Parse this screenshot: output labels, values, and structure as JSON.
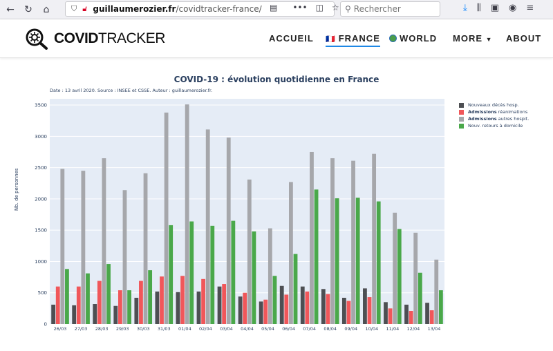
{
  "browser": {
    "url_domain": "guillaumerozier.fr",
    "url_path": "/covidtracker-france/",
    "search_placeholder": "Rechercher",
    "nav_icons": [
      "back-icon",
      "reload-icon",
      "home-icon"
    ],
    "url_icons": [
      "shield-icon",
      "lock-icon"
    ],
    "tool_icons": [
      "reader-icon",
      "more-icon",
      "pocket-icon",
      "star-icon"
    ],
    "right_icons": [
      "download-icon",
      "library-icon",
      "sidebar-icon",
      "account-icon",
      "menu-icon"
    ]
  },
  "site": {
    "logo_bold": "COVID",
    "logo_light": "TRACKER",
    "nav": [
      {
        "label": "ACCUEIL"
      },
      {
        "label": "FRANCE",
        "flag": "🇫🇷",
        "active": true
      },
      {
        "label": "WORLD",
        "icon": "globe-icon"
      },
      {
        "label": "MORE",
        "icon": "chevron-down-icon"
      },
      {
        "label": "ABOUT"
      }
    ]
  },
  "chart_data": {
    "type": "bar",
    "title": "COVID-19 : évolution quotidienne en France",
    "subtitle": "Date : 13 avril 2020. Source : INSEE et CSSE. Auteur : guillaumerozier.fr.",
    "ylabel": "Nb. de personnes",
    "xlabel": "",
    "ylim": [
      0,
      3600
    ],
    "yticks": [
      0,
      500,
      1000,
      1500,
      2000,
      2500,
      3000,
      3500
    ],
    "grid": true,
    "legend_position": "right",
    "categories": [
      "26/03",
      "27/03",
      "28/03",
      "29/03",
      "30/03",
      "31/03",
      "01/04",
      "02/04",
      "03/04",
      "04/04",
      "05/04",
      "06/04",
      "07/04",
      "08/04",
      "09/04",
      "10/04",
      "11/04",
      "12/04",
      "13/04"
    ],
    "series": [
      {
        "name": "Nouveaux décès hosp.",
        "color": "#4d4f53",
        "values": [
          310,
          300,
          320,
          290,
          420,
          520,
          510,
          520,
          600,
          440,
          360,
          610,
          600,
          560,
          420,
          570,
          350,
          310,
          340
        ]
      },
      {
        "name_bold": "Admissions",
        "name_rest": "réanimations",
        "name": "Admissions réanimations",
        "color": "#f0575a",
        "values": [
          600,
          600,
          690,
          540,
          690,
          760,
          770,
          720,
          640,
          500,
          390,
          470,
          520,
          480,
          370,
          430,
          250,
          210,
          220
        ]
      },
      {
        "name_bold": "Admissions",
        "name_rest": "autres hospit.",
        "name": "Admissions autres hospit.",
        "color": "#a6a7ab",
        "values": [
          2480,
          2450,
          2650,
          2140,
          2410,
          3380,
          3510,
          3110,
          2980,
          2310,
          1530,
          2270,
          2750,
          2650,
          2610,
          2720,
          1780,
          1460,
          1030
        ]
      },
      {
        "name": "Nouv. retours à domicile",
        "color": "#4aa84a",
        "values": [
          880,
          810,
          960,
          540,
          860,
          1580,
          1640,
          1570,
          1650,
          1480,
          770,
          1120,
          2150,
          2010,
          2020,
          1960,
          1520,
          820,
          540
        ]
      }
    ]
  }
}
